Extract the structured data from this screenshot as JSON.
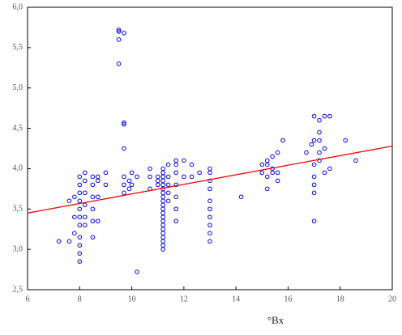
{
  "chart_data": {
    "type": "scatter",
    "xlabel": "°Bx",
    "xlim": [
      6,
      20
    ],
    "xticks": [
      6,
      8,
      10,
      12,
      14,
      16,
      18,
      20
    ],
    "ylim": [
      2.5,
      6
    ],
    "yticks": [
      {
        "value": 2.5,
        "label": "2,5"
      },
      {
        "value": 3,
        "label": "3,0"
      },
      {
        "value": 3.5,
        "label": "3,5"
      },
      {
        "value": 4,
        "label": "4,0"
      },
      {
        "value": 4.5,
        "label": "4,5"
      },
      {
        "value": 5,
        "label": "5,0"
      },
      {
        "value": 5.5,
        "label": "5,5"
      },
      {
        "value": 6,
        "label": "6,0"
      }
    ],
    "color": "#0000ff",
    "x": [
      7.2,
      7.6,
      7.6,
      7.8,
      7.8,
      7.8,
      8,
      8,
      8,
      8,
      8,
      8,
      8,
      8,
      8,
      8,
      8,
      8.2,
      8.2,
      8.2,
      8.2,
      8.2,
      8.2,
      8.5,
      8.5,
      8.5,
      8.5,
      8.5,
      8.5,
      8.7,
      8.7,
      8.7,
      8.7,
      9,
      9,
      9.5,
      9.5,
      9.5,
      9.5,
      9.7,
      9.7,
      9.7,
      9.7,
      9.7,
      9.7,
      9.7,
      9.9,
      9.9,
      10,
      10,
      10.2,
      10.2,
      10.7,
      10.7,
      10.7,
      11,
      11,
      11,
      11.2,
      11.2,
      11.2,
      11.2,
      11.2,
      11.2,
      11.2,
      11.2,
      11.2,
      11.2,
      11.2,
      11.2,
      11.2,
      11.2,
      11.2,
      11.2,
      11.2,
      11.2,
      11.2,
      11.2,
      11.2,
      11.4,
      11.4,
      11.4,
      11.4,
      11.4,
      11.7,
      11.7,
      11.7,
      11.7,
      11.7,
      11.7,
      11.7,
      12,
      12,
      12.3,
      12.3,
      12.6,
      13,
      13,
      13,
      13,
      13,
      13,
      13,
      13,
      13,
      13,
      14.2,
      15,
      15,
      15.2,
      15.2,
      15.2,
      15.2,
      15.4,
      15.4,
      15.4,
      15.6,
      15.6,
      15.6,
      15.8,
      16.7,
      16.9,
      17,
      17,
      17,
      17,
      17,
      17,
      17,
      17.2,
      17.2,
      17.2,
      17.2,
      17.2,
      17.4,
      17.4,
      17.4,
      17.6,
      17.6,
      18.2,
      18.6
    ],
    "values": [
      3.1,
      3.6,
      3.1,
      3.2,
      3.4,
      3.65,
      2.85,
      2.95,
      3.05,
      3.15,
      3.3,
      3.4,
      3.5,
      3.6,
      3.7,
      3.8,
      3.9,
      3.3,
      3.4,
      3.55,
      3.7,
      3.85,
      3.95,
      3.15,
      3.35,
      3.5,
      3.65,
      3.8,
      3.9,
      3.35,
      3.65,
      3.85,
      3.9,
      3.8,
      3.95,
      5.3,
      5.6,
      5.7,
      5.72,
      5.68,
      4.57,
      4.55,
      4.25,
      3.9,
      3.8,
      3.7,
      3.75,
      3.85,
      3.95,
      3.8,
      2.72,
      3.9,
      4,
      3.9,
      3.75,
      3.9,
      3.85,
      3.8,
      3,
      3.05,
      3.1,
      3.15,
      3.2,
      3.25,
      3.3,
      3.35,
      3.4,
      3.45,
      3.5,
      3.55,
      3.6,
      3.65,
      3.7,
      3.75,
      3.8,
      3.85,
      3.9,
      3.95,
      4,
      3.6,
      3.7,
      3.8,
      3.9,
      4.05,
      3.35,
      3.5,
      3.65,
      3.8,
      3.95,
      4.05,
      4.1,
      3.9,
      4.1,
      3.9,
      4.05,
      3.95,
      3.1,
      3.2,
      3.3,
      3.4,
      3.5,
      3.6,
      3.75,
      3.85,
      3.95,
      4,
      3.65,
      3.95,
      4.05,
      3.75,
      3.9,
      4.05,
      4.1,
      4,
      3.95,
      4.15,
      3.85,
      3.95,
      4.2,
      4.35,
      4.2,
      4.3,
      4.65,
      4.35,
      4.05,
      3.9,
      3.8,
      3.7,
      3.35,
      4.45,
      4.6,
      4.35,
      4.2,
      4.1,
      4.65,
      3.95,
      4.25,
      4.65,
      4,
      4.35,
      4.1
    ],
    "fit": {
      "x": [
        6,
        20
      ],
      "values": [
        3.45,
        4.28
      ],
      "color": "#ff0000"
    }
  }
}
